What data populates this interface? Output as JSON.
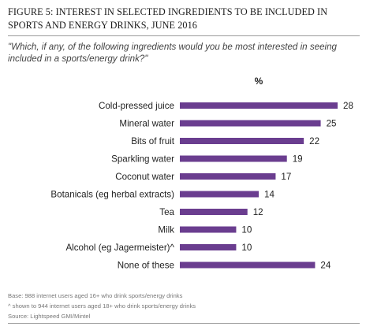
{
  "figure": {
    "title_line1": "FIGURE 5: INTEREST IN SELECTED INGREDIENTS TO BE INCLUDED IN",
    "title_line2": "SPORTS AND ENERGY DRINKS, JUNE 2016",
    "question": "\"Which, if any, of the following ingredients would you be most interested in seeing included in a sports/energy drink?\""
  },
  "chart_data": {
    "type": "bar",
    "orientation": "horizontal",
    "unit_label": "%",
    "categories": [
      "Cold-pressed juice",
      "Mineral water",
      "Bits of fruit",
      "Sparkling water",
      "Coconut water",
      "Botanicals (eg herbal extracts)",
      "Tea",
      "Milk",
      "Alcohol (eg Jagermeister)^",
      "None of these"
    ],
    "values": [
      28,
      25,
      22,
      19,
      17,
      14,
      12,
      10,
      10,
      24
    ],
    "xlim": [
      0,
      28
    ],
    "grid": false,
    "bar_color": "#6a3d8f"
  },
  "notes": {
    "base": "Base: 988 internet users aged 16+ who drink sports/energy drinks",
    "footnote": "^ shown to 944 internet users aged 18+ who drink sports/energy drinks",
    "source": "Source: Lightspeed GMI/Mintel"
  }
}
